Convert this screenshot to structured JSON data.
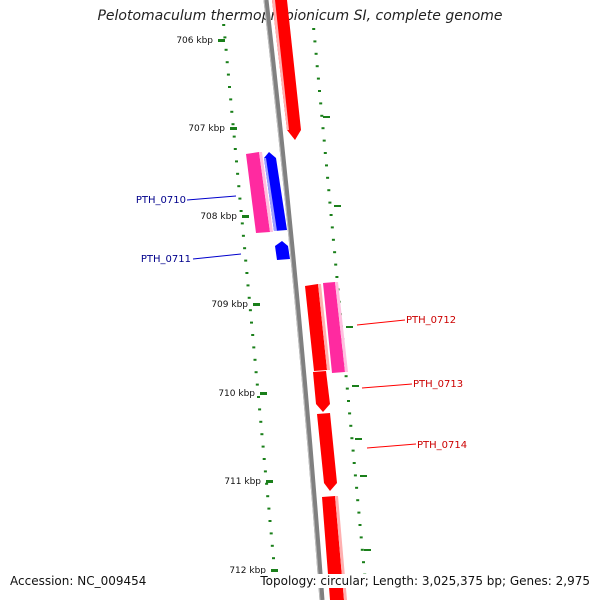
{
  "title": "Pelotomaculum thermopropionicum SI, complete genome",
  "footer": {
    "accession": "Accession: NC_009454",
    "summary": "Topology: circular; Length: 3,025,375 bp; Genes: 2,975"
  },
  "colors": {
    "backbone": "#808080",
    "forward_gene": "#ff0000",
    "reverse_gene": "#0000ff",
    "feature": "#ff2aa0",
    "tick": "#1a7f1a",
    "label_forward": "#cc0000",
    "label_reverse": "#00008b"
  },
  "ticks": [
    {
      "label": "706 kbp"
    },
    {
      "label": "707 kbp"
    },
    {
      "label": "708 kbp"
    },
    {
      "label": "709 kbp"
    },
    {
      "label": "710 kbp"
    },
    {
      "label": "711 kbp"
    },
    {
      "label": "712 kbp"
    }
  ],
  "gene_labels": [
    {
      "name": "PTH_0710",
      "strand": "reverse"
    },
    {
      "name": "PTH_0711",
      "strand": "reverse"
    },
    {
      "name": "PTH_0712",
      "strand": "forward"
    },
    {
      "name": "PTH_0713",
      "strand": "forward"
    },
    {
      "name": "PTH_0714",
      "strand": "forward"
    }
  ]
}
